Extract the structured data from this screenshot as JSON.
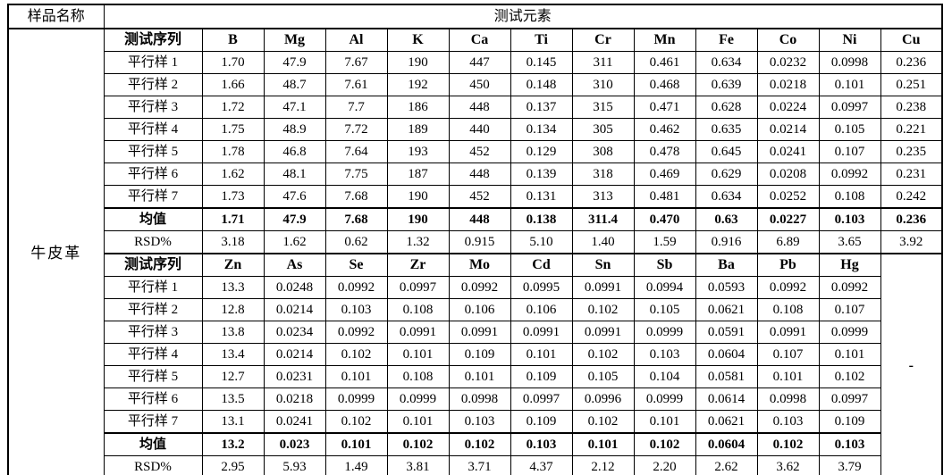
{
  "table": {
    "sample_name_label": "样品名称",
    "elements_header": "测试元素",
    "sample_name": "牛皮革",
    "series_label": "测试序列",
    "mean_label": "均值",
    "rsd_label": "RSD%",
    "empty_placeholder": "-",
    "row_labels": [
      "平行样 1",
      "平行样 2",
      "平行样 3",
      "平行样 4",
      "平行样 5",
      "平行样 6",
      "平行样 7"
    ],
    "sections": [
      {
        "elements": [
          "B",
          "Mg",
          "Al",
          "K",
          "Ca",
          "Ti",
          "Cr",
          "Mn",
          "Fe",
          "Co",
          "Ni",
          "Cu"
        ],
        "samples": [
          [
            "1.70",
            "47.9",
            "7.67",
            "190",
            "447",
            "0.145",
            "311",
            "0.461",
            "0.634",
            "0.0232",
            "0.0998",
            "0.236"
          ],
          [
            "1.66",
            "48.7",
            "7.61",
            "192",
            "450",
            "0.148",
            "310",
            "0.468",
            "0.639",
            "0.0218",
            "0.101",
            "0.251"
          ],
          [
            "1.72",
            "47.1",
            "7.7",
            "186",
            "448",
            "0.137",
            "315",
            "0.471",
            "0.628",
            "0.0224",
            "0.0997",
            "0.238"
          ],
          [
            "1.75",
            "48.9",
            "7.72",
            "189",
            "440",
            "0.134",
            "305",
            "0.462",
            "0.635",
            "0.0214",
            "0.105",
            "0.221"
          ],
          [
            "1.78",
            "46.8",
            "7.64",
            "193",
            "452",
            "0.129",
            "308",
            "0.478",
            "0.645",
            "0.0241",
            "0.107",
            "0.235"
          ],
          [
            "1.62",
            "48.1",
            "7.75",
            "187",
            "448",
            "0.139",
            "318",
            "0.469",
            "0.629",
            "0.0208",
            "0.0992",
            "0.231"
          ],
          [
            "1.73",
            "47.6",
            "7.68",
            "190",
            "452",
            "0.131",
            "313",
            "0.481",
            "0.634",
            "0.0252",
            "0.108",
            "0.242"
          ]
        ],
        "mean": [
          "1.71",
          "47.9",
          "7.68",
          "190",
          "448",
          "0.138",
          "311.4",
          "0.470",
          "0.63",
          "0.0227",
          "0.103",
          "0.236"
        ],
        "rsd": [
          "3.18",
          "1.62",
          "0.62",
          "1.32",
          "0.915",
          "5.10",
          "1.40",
          "1.59",
          "0.916",
          "6.89",
          "3.65",
          "3.92"
        ]
      },
      {
        "elements": [
          "Zn",
          "As",
          "Se",
          "Zr",
          "Mo",
          "Cd",
          "Sn",
          "Sb",
          "Ba",
          "Pb",
          "Hg"
        ],
        "samples": [
          [
            "13.3",
            "0.0248",
            "0.0992",
            "0.0997",
            "0.0992",
            "0.0995",
            "0.0991",
            "0.0994",
            "0.0593",
            "0.0992",
            "0.0992"
          ],
          [
            "12.8",
            "0.0214",
            "0.103",
            "0.108",
            "0.106",
            "0.106",
            "0.102",
            "0.105",
            "0.0621",
            "0.108",
            "0.107"
          ],
          [
            "13.8",
            "0.0234",
            "0.0992",
            "0.0991",
            "0.0991",
            "0.0991",
            "0.0991",
            "0.0999",
            "0.0591",
            "0.0991",
            "0.0999"
          ],
          [
            "13.4",
            "0.0214",
            "0.102",
            "0.101",
            "0.109",
            "0.101",
            "0.102",
            "0.103",
            "0.0604",
            "0.107",
            "0.101"
          ],
          [
            "12.7",
            "0.0231",
            "0.101",
            "0.108",
            "0.101",
            "0.109",
            "0.105",
            "0.104",
            "0.0581",
            "0.101",
            "0.102"
          ],
          [
            "13.5",
            "0.0218",
            "0.0999",
            "0.0999",
            "0.0998",
            "0.0997",
            "0.0996",
            "0.0999",
            "0.0614",
            "0.0998",
            "0.0997"
          ],
          [
            "13.1",
            "0.0241",
            "0.102",
            "0.101",
            "0.103",
            "0.109",
            "0.102",
            "0.101",
            "0.0621",
            "0.103",
            "0.109"
          ]
        ],
        "mean": [
          "13.2",
          "0.023",
          "0.101",
          "0.102",
          "0.102",
          "0.103",
          "0.101",
          "0.102",
          "0.0604",
          "0.102",
          "0.103"
        ],
        "rsd": [
          "2.95",
          "5.93",
          "1.49",
          "3.81",
          "3.71",
          "4.37",
          "2.12",
          "2.20",
          "2.62",
          "3.62",
          "3.79"
        ]
      }
    ]
  }
}
